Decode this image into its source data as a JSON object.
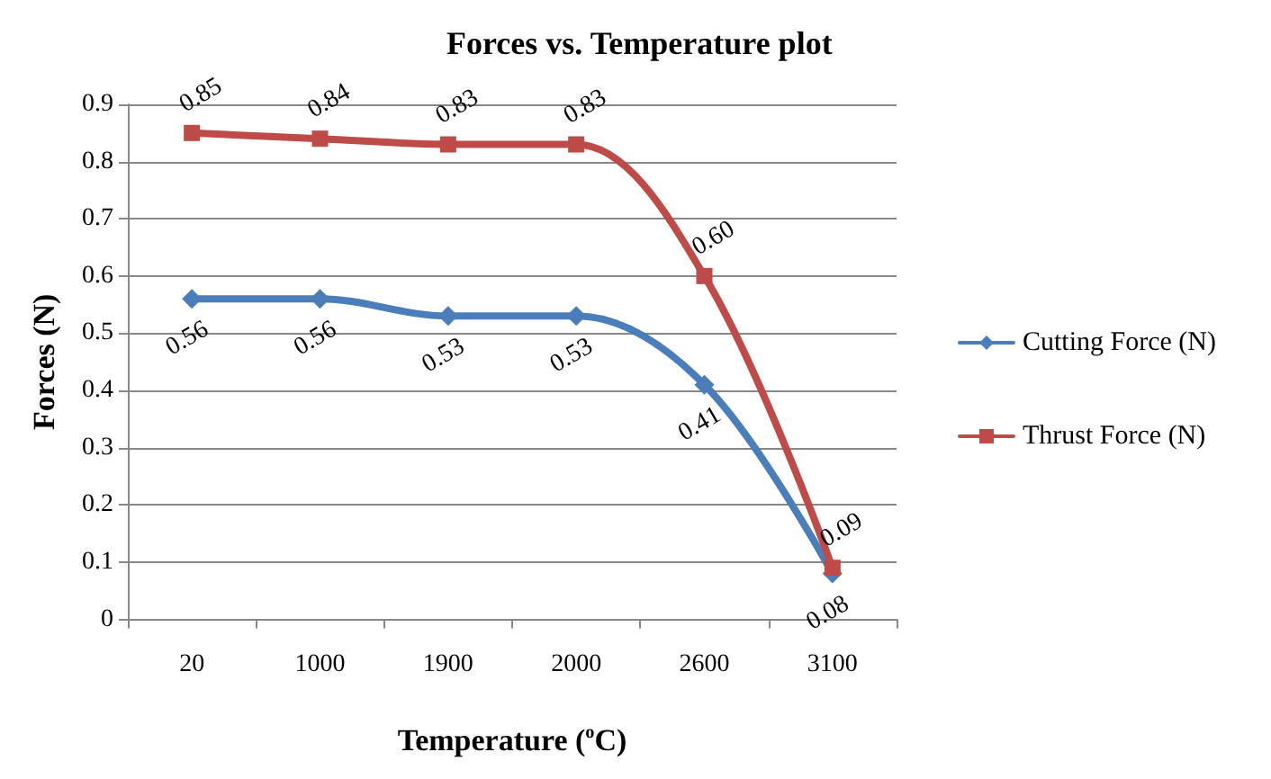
{
  "chart_data": {
    "type": "line",
    "title": "Forces vs. Temperature plot",
    "xlabel": "Temperature ($^{o}$C)",
    "ylabel": "Forces (N)",
    "categories": [
      "20",
      "1000",
      "1900",
      "2000",
      "2600",
      "3100"
    ],
    "series": [
      {
        "name": "Cutting Force (N)",
        "color": "#4a7ebb",
        "marker": "diamond",
        "values": [
          0.56,
          0.56,
          0.53,
          0.53,
          0.41,
          0.08
        ],
        "value_labels": [
          "0.56",
          "0.56",
          "0.53",
          "0.53",
          "0.41",
          "0.08"
        ]
      },
      {
        "name": "Thrust Force (N)",
        "color": "#be4b48",
        "marker": "square",
        "values": [
          0.85,
          0.84,
          0.83,
          0.83,
          0.6,
          0.09
        ],
        "value_labels": [
          "0.85",
          "0.84",
          "0.83",
          "0.83",
          "0.60",
          "0.09"
        ]
      }
    ],
    "ylim": [
      0,
      0.9
    ],
    "yticks": [
      0,
      0.1,
      0.2,
      0.3,
      0.4,
      0.5,
      0.6,
      0.7,
      0.8,
      0.9
    ],
    "grid": "y",
    "legend": "right",
    "line_style": "solid"
  }
}
